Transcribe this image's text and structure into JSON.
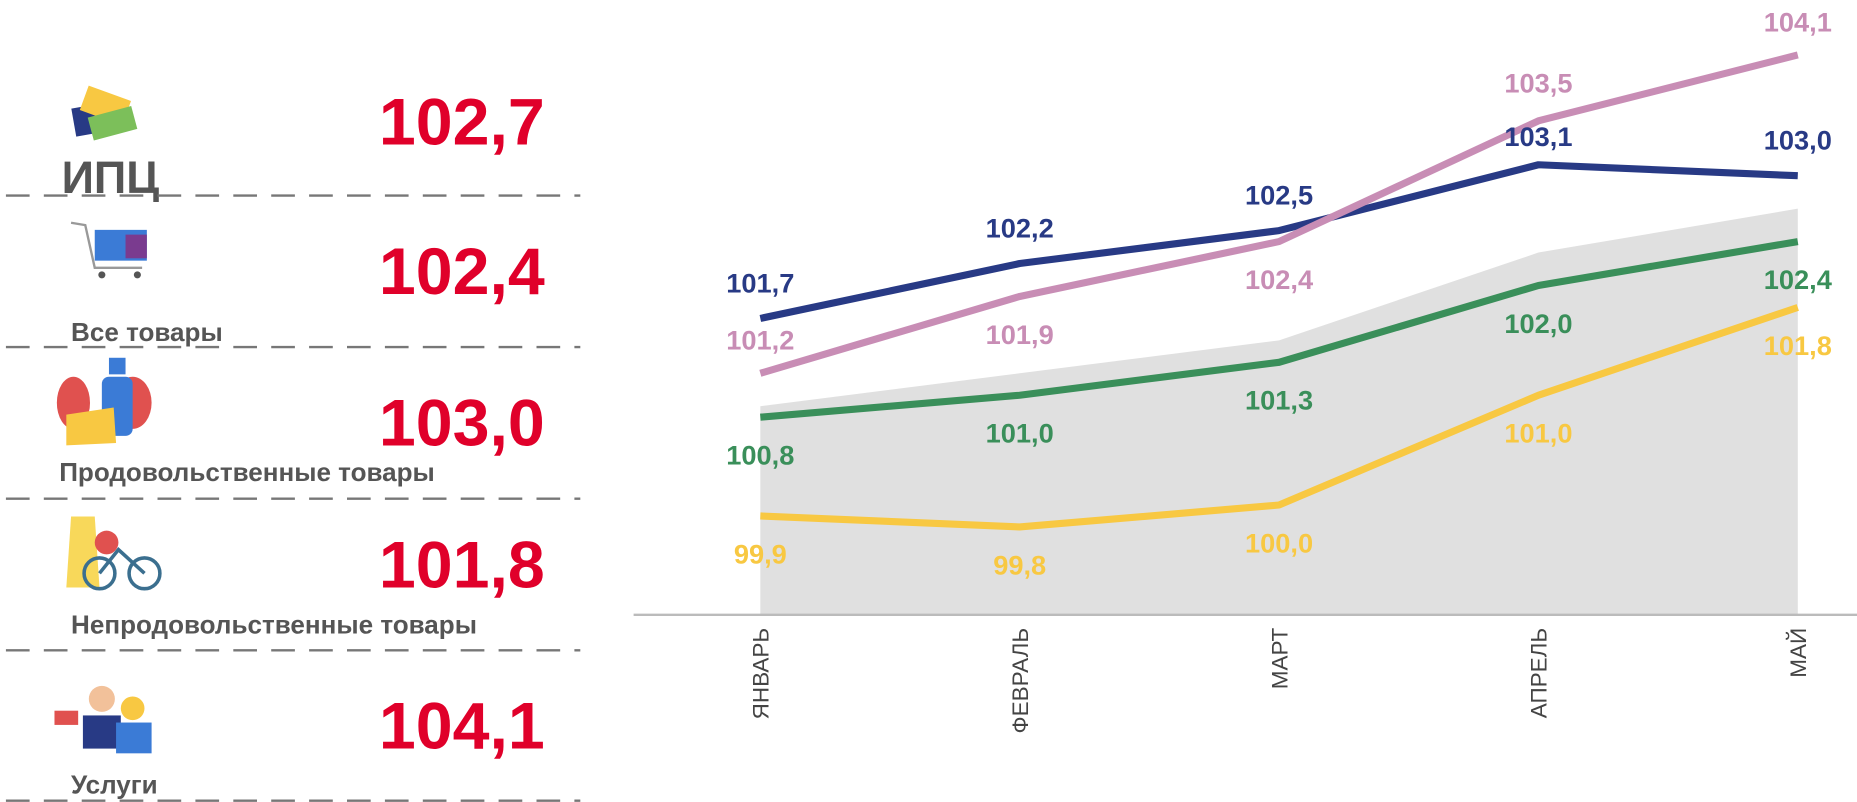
{
  "left_panel": {
    "rows": [
      {
        "label": "ИПЦ",
        "value": "102,7"
      },
      {
        "label": "Все товары",
        "value": "102,4"
      },
      {
        "label": "Продовольственные товары",
        "value": "103,0"
      },
      {
        "label": "Непродовольственные товары",
        "value": "101,8"
      },
      {
        "label": "Услуги",
        "value": "104,1"
      }
    ]
  },
  "chart_data": {
    "type": "line",
    "categories": [
      "ЯНВАРЬ",
      "ФЕВРАЛЬ",
      "МАРТ",
      "АПРЕЛЬ",
      "МАЙ"
    ],
    "ylim": [
      99.0,
      104.6
    ],
    "area": {
      "color": "#e0e0e0",
      "values": [
        100.9,
        101.2,
        101.5,
        102.3,
        102.7
      ]
    },
    "series": [
      {
        "color": "#283a85",
        "values": [
          101.7,
          102.2,
          102.5,
          103.1,
          103.0
        ],
        "value_labels": [
          "101,7",
          "102,2",
          "102,5",
          "103,1",
          "103,0"
        ]
      },
      {
        "color": "#c88db5",
        "values": [
          101.2,
          101.9,
          102.4,
          103.5,
          104.1
        ],
        "value_labels": [
          "101,2",
          "101,9",
          "102,4",
          "103,5",
          "104,1"
        ]
      },
      {
        "color": "#3a8f5a",
        "values": [
          100.8,
          101.0,
          101.3,
          102.0,
          102.4
        ],
        "value_labels": [
          "100,8",
          "101,0",
          "101,3",
          "102,0",
          "102,4"
        ]
      },
      {
        "color": "#f8c842",
        "values": [
          99.9,
          99.8,
          100.0,
          101.0,
          101.8
        ],
        "value_labels": [
          "99,9",
          "99,8",
          "100,0",
          "101,0",
          "101,8"
        ]
      }
    ]
  }
}
